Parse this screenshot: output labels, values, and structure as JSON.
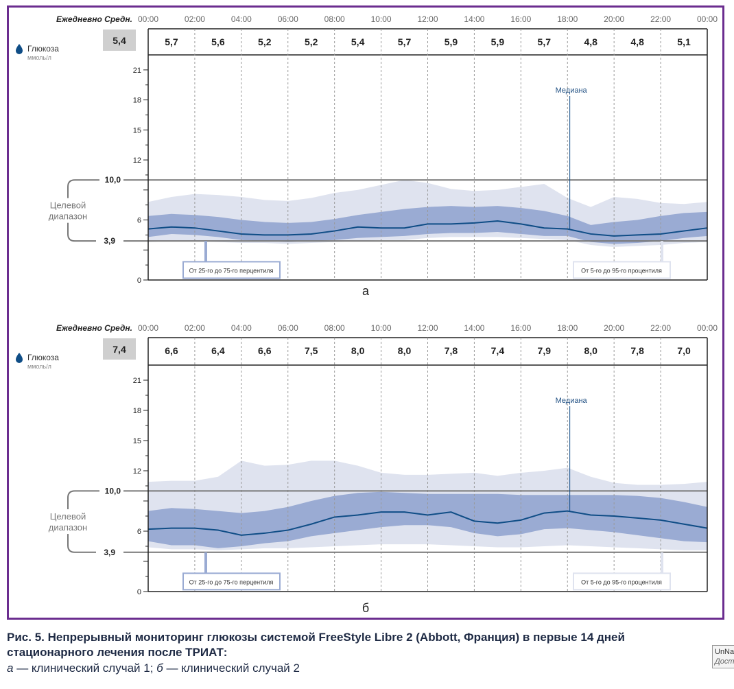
{
  "colors": {
    "frame": "#6b2d8f",
    "band_outer": "#dfe3ef",
    "band_inner": "#9aabd3",
    "median": "#0f4d86",
    "target_lines": "#777777",
    "label_text": "#1f4f82"
  },
  "icons": {
    "drop": "blood-drop-icon"
  },
  "chart_data": [
    {
      "type": "area",
      "panel_letter": "а",
      "header_label": "Ежедневно Средн.",
      "daily_avg": "5,4",
      "times": [
        "00:00",
        "02:00",
        "04:00",
        "06:00",
        "08:00",
        "10:00",
        "12:00",
        "14:00",
        "16:00",
        "18:00",
        "20:00",
        "22:00",
        "00:00"
      ],
      "hourly_avgs": [
        "5,7",
        "5,6",
        "5,2",
        "5,2",
        "5,4",
        "5,7",
        "5,9",
        "5,9",
        "5,7",
        "4,8",
        "4,8",
        "5,1"
      ],
      "y_label": "Глюкоза",
      "y_unit": "ммоль/л",
      "y_ticks": [
        "21",
        "18",
        "15",
        "12",
        "6",
        "0"
      ],
      "ylim": [
        0,
        22.5
      ],
      "target_upper": 10.0,
      "target_lower": 3.9,
      "target_upper_label": "10,0",
      "target_lower_label": "3,9",
      "target_label_line1": "Целевой",
      "target_label_line2": "диапазон",
      "median_label": "Медиана",
      "median_label_x": 18.1,
      "legend_inner": "От 25-го до 75-го перцентиля",
      "legend_outer": "От 5-го до 95-го процентиля",
      "x_hours": [
        0,
        1,
        2,
        3,
        4,
        5,
        6,
        7,
        8,
        9,
        10,
        11,
        12,
        13,
        14,
        15,
        16,
        17,
        18,
        19,
        20,
        21,
        22,
        23,
        24
      ],
      "p95": [
        7.8,
        8.3,
        8.6,
        8.5,
        8.3,
        8.0,
        7.9,
        8.2,
        8.7,
        9.0,
        9.5,
        10.0,
        9.7,
        9.1,
        8.9,
        9.0,
        9.3,
        9.6,
        8.2,
        7.3,
        8.3,
        8.1,
        7.7,
        7.6,
        7.8
      ],
      "p75": [
        6.4,
        6.6,
        6.5,
        6.3,
        6.0,
        5.8,
        5.7,
        5.8,
        6.1,
        6.5,
        6.8,
        7.1,
        7.3,
        7.4,
        7.3,
        7.4,
        7.2,
        6.9,
        6.4,
        5.5,
        5.8,
        6.0,
        6.4,
        6.7,
        6.8
      ],
      "median": [
        5.1,
        5.3,
        5.2,
        4.9,
        4.6,
        4.5,
        4.5,
        4.6,
        4.9,
        5.3,
        5.2,
        5.2,
        5.6,
        5.6,
        5.7,
        5.9,
        5.6,
        5.2,
        5.1,
        4.6,
        4.4,
        4.5,
        4.6,
        4.9,
        5.2
      ],
      "p25": [
        4.3,
        4.6,
        4.5,
        4.3,
        4.0,
        3.9,
        3.8,
        3.9,
        4.0,
        4.2,
        4.3,
        4.4,
        4.6,
        4.7,
        4.7,
        4.8,
        4.6,
        4.4,
        4.4,
        3.8,
        3.6,
        3.7,
        3.9,
        4.2,
        4.4
      ],
      "p5": [
        3.8,
        3.9,
        3.9,
        3.8,
        3.7,
        3.7,
        3.6,
        3.7,
        3.8,
        3.9,
        4.0,
        4.0,
        4.2,
        4.3,
        4.3,
        4.3,
        4.2,
        4.1,
        4.0,
        3.5,
        3.3,
        3.4,
        3.5,
        3.7,
        3.8
      ]
    },
    {
      "type": "area",
      "panel_letter": "б",
      "header_label": "Ежедневно Средн.",
      "daily_avg": "7,4",
      "times": [
        "00:00",
        "02:00",
        "04:00",
        "06:00",
        "08:00",
        "10:00",
        "12:00",
        "14:00",
        "16:00",
        "18:00",
        "20:00",
        "22:00",
        "00:00"
      ],
      "hourly_avgs": [
        "6,6",
        "6,4",
        "6,6",
        "7,5",
        "8,0",
        "8,0",
        "7,8",
        "7,4",
        "7,9",
        "8,0",
        "7,8",
        "7,0"
      ],
      "y_label": "Глюкоза",
      "y_unit": "ммоль/л",
      "y_ticks": [
        "21",
        "18",
        "15",
        "12",
        "6",
        "0"
      ],
      "ylim": [
        0,
        22.5
      ],
      "target_upper": 10.0,
      "target_lower": 3.9,
      "target_upper_label": "10,0",
      "target_lower_label": "3,9",
      "target_label_line1": "Целевой",
      "target_label_line2": "диапазон",
      "median_label": "Медиана",
      "median_label_x": 18.1,
      "legend_inner": "От 25-го до 75-го перцентиля",
      "legend_outer": "От 5-го до 95-го процентиля",
      "x_hours": [
        0,
        1,
        2,
        3,
        4,
        5,
        6,
        7,
        8,
        9,
        10,
        11,
        12,
        13,
        14,
        15,
        16,
        17,
        18,
        19,
        20,
        21,
        22,
        23,
        24
      ],
      "p95": [
        10.9,
        11.0,
        11.0,
        11.4,
        13.0,
        12.5,
        12.6,
        13.0,
        13.0,
        12.5,
        11.8,
        11.6,
        11.6,
        11.7,
        11.8,
        11.5,
        11.8,
        12.0,
        12.3,
        11.4,
        10.8,
        10.6,
        10.6,
        10.7,
        10.9
      ],
      "p75": [
        8.0,
        8.3,
        8.2,
        8.0,
        7.8,
        8.0,
        8.4,
        9.0,
        9.5,
        9.8,
        9.9,
        9.8,
        9.7,
        9.7,
        9.7,
        9.7,
        9.6,
        9.6,
        9.6,
        9.6,
        9.6,
        9.5,
        9.3,
        8.9,
        8.4
      ],
      "median": [
        6.2,
        6.3,
        6.3,
        6.1,
        5.6,
        5.8,
        6.1,
        6.7,
        7.4,
        7.6,
        7.9,
        7.9,
        7.6,
        7.9,
        7.0,
        6.8,
        7.1,
        7.8,
        8.0,
        7.6,
        7.5,
        7.3,
        7.1,
        6.7,
        6.3
      ],
      "p25": [
        5.0,
        4.6,
        4.6,
        4.3,
        4.5,
        4.8,
        5.0,
        5.5,
        5.8,
        6.1,
        6.4,
        6.6,
        6.6,
        6.4,
        5.8,
        5.5,
        5.7,
        6.2,
        6.3,
        6.1,
        5.9,
        5.6,
        5.3,
        5.0,
        4.9
      ],
      "p5": [
        4.4,
        4.2,
        4.2,
        4.1,
        4.2,
        4.3,
        4.3,
        4.4,
        4.5,
        4.6,
        4.7,
        4.7,
        4.7,
        4.6,
        4.5,
        4.4,
        4.4,
        4.5,
        4.6,
        4.5,
        4.4,
        4.3,
        4.2,
        4.1,
        4.1
      ]
    }
  ],
  "caption": {
    "title_line1": "Рис. 5. Непрерывный мониторинг глюкозы системой FreeStyle Libre 2 (Abbott, Франция) в первые 14 дней",
    "title_line2": "стационарного лечения после ТРИАТ:",
    "sub_a_letter": "а",
    "sub_a_text": " — клинический случай 1; ",
    "sub_b_letter": "б",
    "sub_b_text": " — клинический случай 2"
  },
  "tag": {
    "line1": "UnNa",
    "line2": "Дост"
  }
}
